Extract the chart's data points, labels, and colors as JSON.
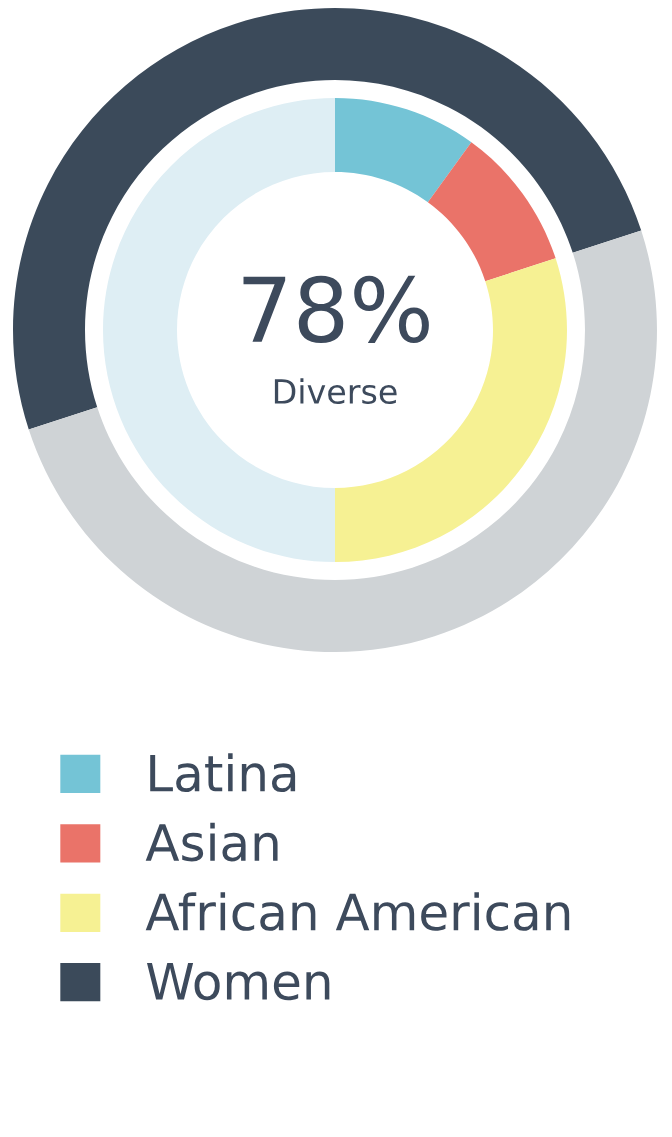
{
  "chart_data": {
    "type": "donut",
    "annotations": [
      "78%",
      "Diverse"
    ],
    "legend": "bottom",
    "categories": [
      "Latina",
      "Asian",
      "African American",
      null,
      "Women",
      null
    ],
    "colors": [
      "#74c4d6",
      "#ea7369",
      "#f6f193",
      "#deeef4",
      "#3b4a5a",
      "#cfd3d6"
    ],
    "series": [
      {
        "values": [
          10,
          10,
          30,
          50,
          null,
          null
        ]
      },
      {
        "values": [
          null,
          null,
          null,
          null,
          50,
          50
        ]
      }
    ]
  }
}
